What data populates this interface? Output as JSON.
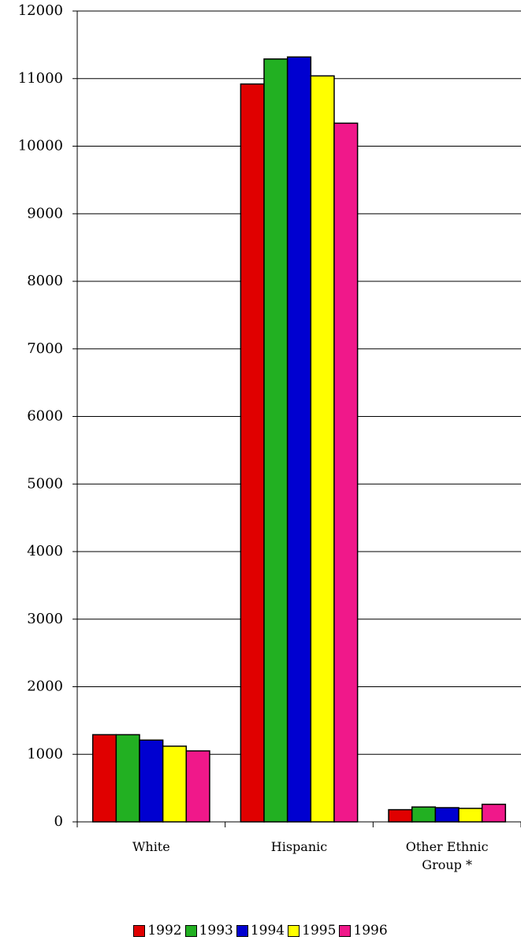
{
  "chart_data": {
    "type": "bar",
    "categories": [
      "White",
      "Hispanic",
      "Other Ethnic Group *"
    ],
    "series": [
      {
        "name": "1992",
        "color": "#e00000",
        "values": [
          1290,
          10920,
          180
        ]
      },
      {
        "name": "1993",
        "color": "#22b022",
        "values": [
          1290,
          11290,
          220
        ]
      },
      {
        "name": "1994",
        "color": "#0000d0",
        "values": [
          1210,
          11320,
          210
        ]
      },
      {
        "name": "1995",
        "color": "#ffff00",
        "values": [
          1120,
          11040,
          200
        ]
      },
      {
        "name": "1996",
        "color": "#f0188a",
        "values": [
          1050,
          10340,
          260
        ]
      }
    ],
    "ylim": [
      0,
      12000
    ],
    "yticks": [
      0,
      1000,
      2000,
      3000,
      4000,
      5000,
      6000,
      7000,
      8000,
      9000,
      10000,
      11000,
      12000
    ],
    "grid": true,
    "legend": "bottom"
  }
}
